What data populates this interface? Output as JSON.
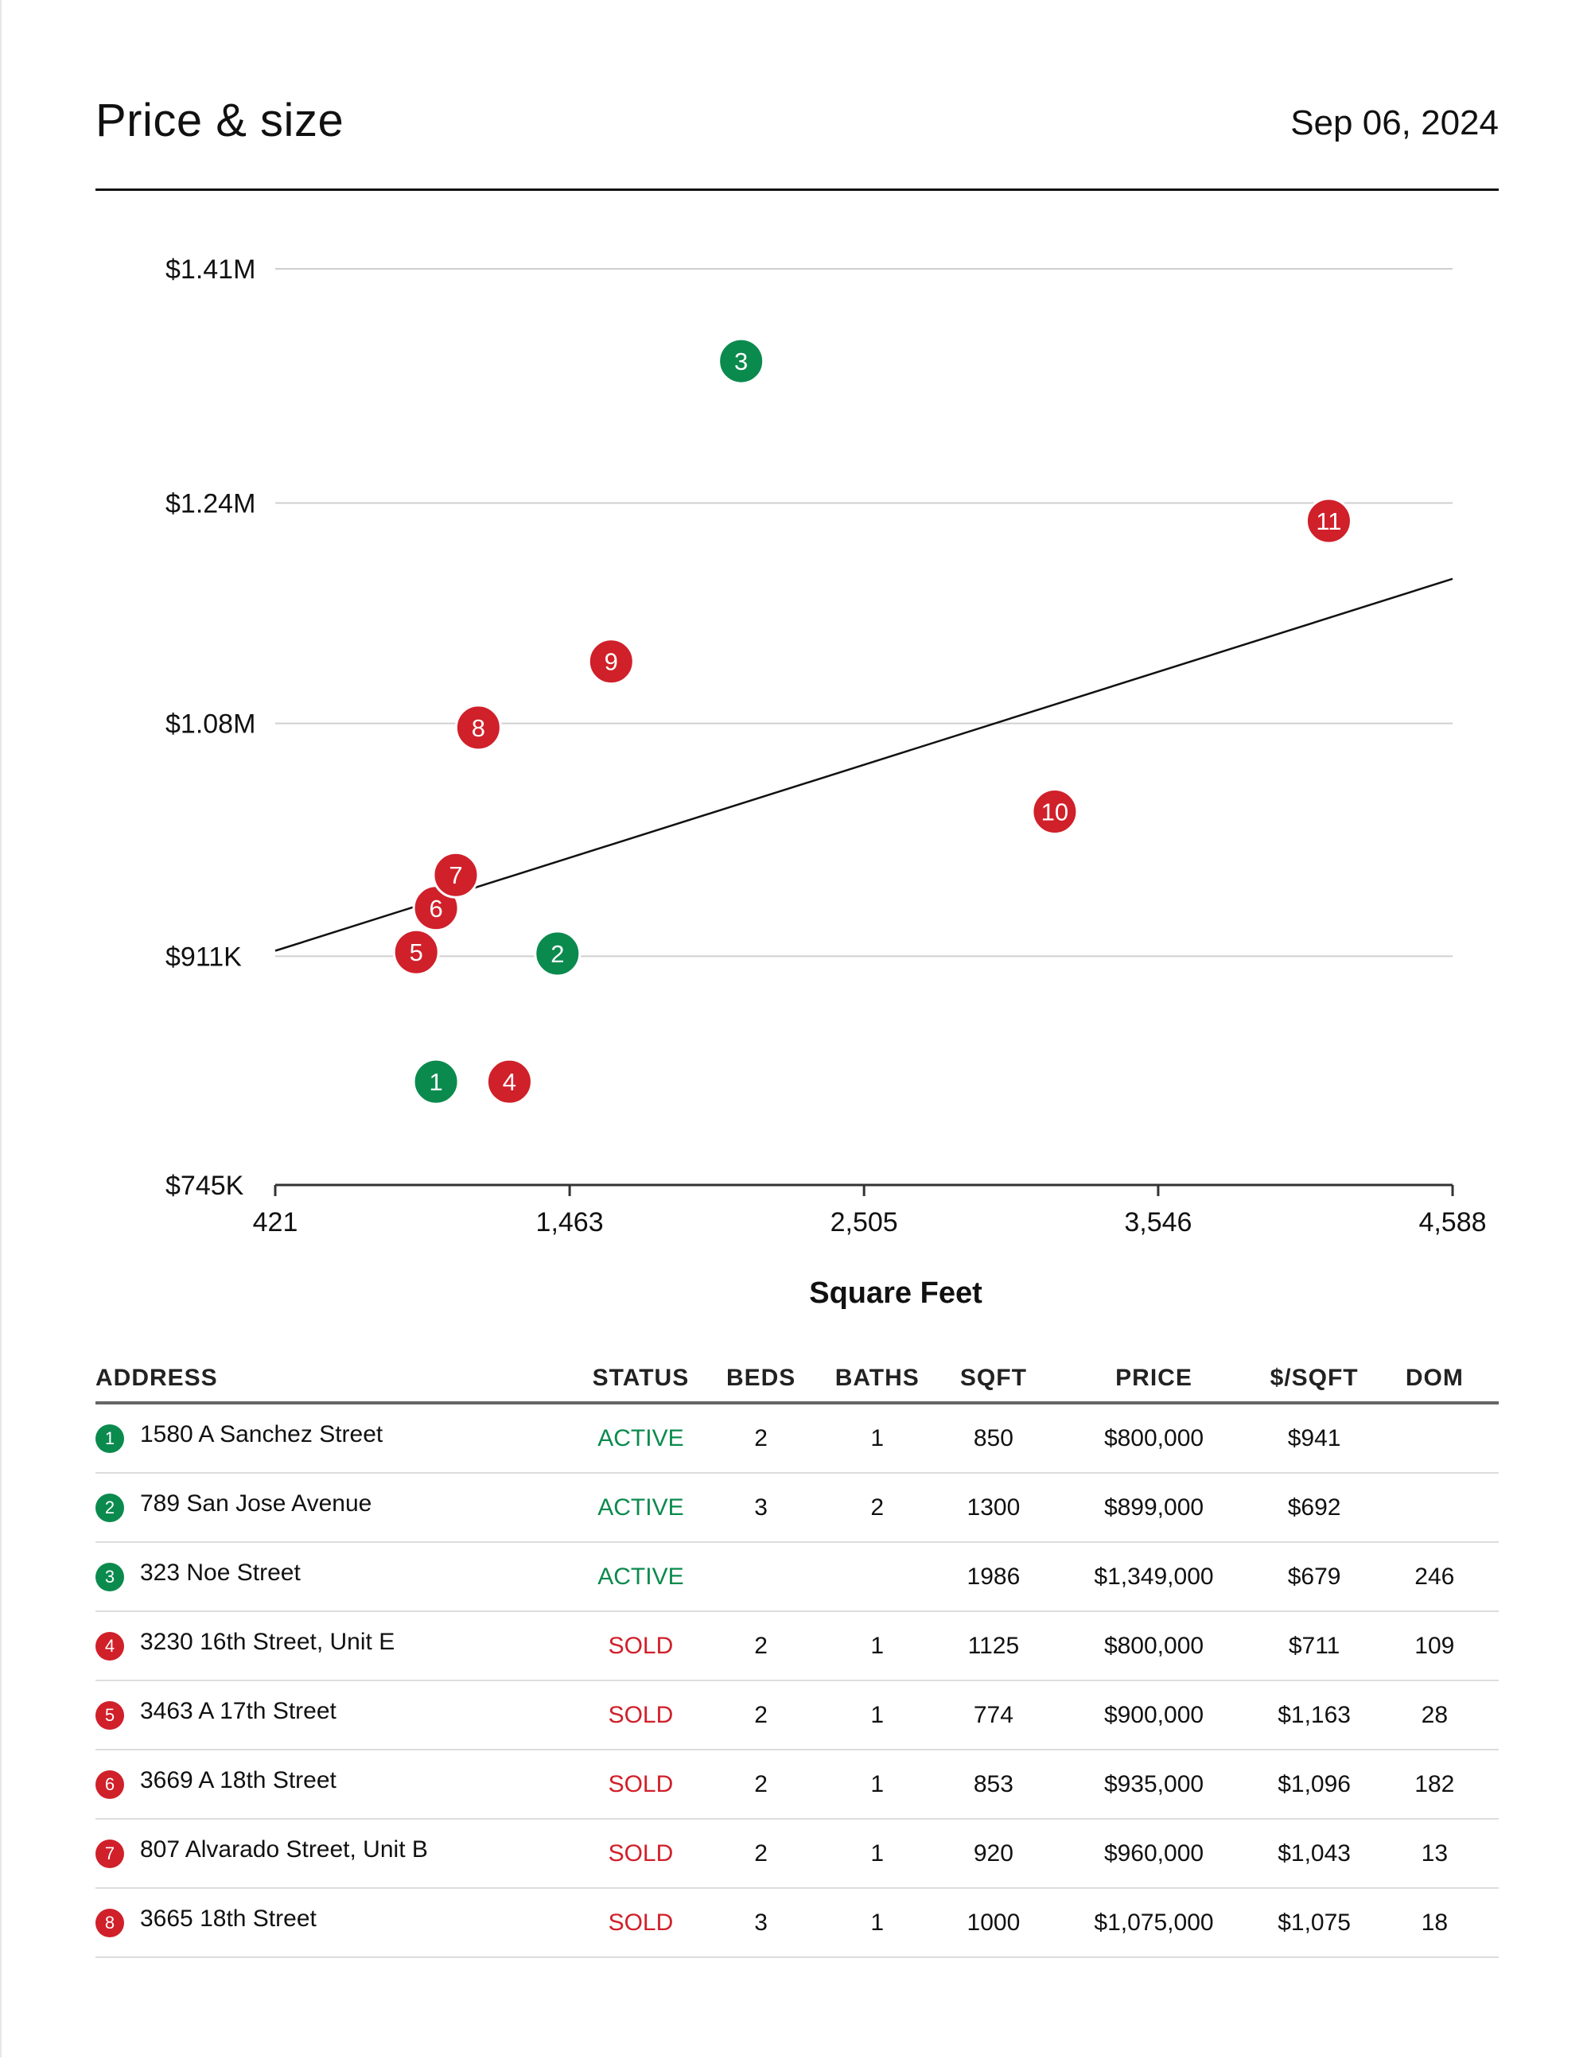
{
  "header": {
    "title": "Price & size",
    "date": "Sep 06, 2024"
  },
  "colors": {
    "active": "#0b8a4e",
    "sold": "#d0202a",
    "trendline": "#111111",
    "gridline": "#cfcfcf"
  },
  "chart_data": {
    "type": "scatter",
    "xlabel": "Square Feet",
    "x_ticks": [
      421,
      1463,
      2505,
      3546,
      4588
    ],
    "x_tick_labels": [
      "421",
      "1,463",
      "2,505",
      "3,546",
      "4,588"
    ],
    "y_ticks": [
      745000,
      911000,
      1080000,
      1240000,
      1410000
    ],
    "y_tick_labels": [
      "$745K",
      "$911K",
      "$1.08M",
      "$1.24M",
      "$1.41M"
    ],
    "xlim": [
      421,
      4588
    ],
    "ylim": [
      745000,
      1410000
    ],
    "grid": true,
    "points": [
      {
        "label": "1",
        "x": 990,
        "y": 820000,
        "status": "active"
      },
      {
        "label": "2",
        "x": 1420,
        "y": 913000,
        "status": "active"
      },
      {
        "label": "3",
        "x": 2070,
        "y": 1343000,
        "status": "active"
      },
      {
        "label": "4",
        "x": 1250,
        "y": 820000,
        "status": "sold"
      },
      {
        "label": "5",
        "x": 920,
        "y": 914000,
        "status": "sold"
      },
      {
        "label": "6",
        "x": 990,
        "y": 946000,
        "status": "sold"
      },
      {
        "label": "7",
        "x": 1060,
        "y": 970000,
        "status": "sold"
      },
      {
        "label": "8",
        "x": 1140,
        "y": 1077000,
        "status": "sold"
      },
      {
        "label": "9",
        "x": 1610,
        "y": 1125000,
        "status": "sold"
      },
      {
        "label": "10",
        "x": 3180,
        "y": 1016000,
        "status": "sold"
      },
      {
        "label": "11",
        "x": 4150,
        "y": 1227000,
        "status": "sold"
      }
    ],
    "trendline": {
      "x0": 421,
      "y0": 915000,
      "x1": 4588,
      "y1": 1185000
    }
  },
  "table": {
    "headers": [
      "ADDRESS",
      "STATUS",
      "BEDS",
      "BATHS",
      "SQFT",
      "PRICE",
      "$/SQFT",
      "DOM"
    ],
    "rows": [
      {
        "num": "1",
        "address": "1580 A Sanchez Street",
        "status": "ACTIVE",
        "beds": "2",
        "baths": "1",
        "sqft": "850",
        "price": "$800,000",
        "ppsf": "$941",
        "dom": ""
      },
      {
        "num": "2",
        "address": "789 San Jose Avenue",
        "status": "ACTIVE",
        "beds": "3",
        "baths": "2",
        "sqft": "1300",
        "price": "$899,000",
        "ppsf": "$692",
        "dom": ""
      },
      {
        "num": "3",
        "address": "323 Noe Street",
        "status": "ACTIVE",
        "beds": "",
        "baths": "",
        "sqft": "1986",
        "price": "$1,349,000",
        "ppsf": "$679",
        "dom": "246"
      },
      {
        "num": "4",
        "address": "3230 16th Street, Unit E",
        "status": "SOLD",
        "beds": "2",
        "baths": "1",
        "sqft": "1125",
        "price": "$800,000",
        "ppsf": "$711",
        "dom": "109"
      },
      {
        "num": "5",
        "address": "3463 A 17th Street",
        "status": "SOLD",
        "beds": "2",
        "baths": "1",
        "sqft": "774",
        "price": "$900,000",
        "ppsf": "$1,163",
        "dom": "28"
      },
      {
        "num": "6",
        "address": "3669 A 18th Street",
        "status": "SOLD",
        "beds": "2",
        "baths": "1",
        "sqft": "853",
        "price": "$935,000",
        "ppsf": "$1,096",
        "dom": "182"
      },
      {
        "num": "7",
        "address": "807 Alvarado Street, Unit B",
        "status": "SOLD",
        "beds": "2",
        "baths": "1",
        "sqft": "920",
        "price": "$960,000",
        "ppsf": "$1,043",
        "dom": "13"
      },
      {
        "num": "8",
        "address": "3665 18th Street",
        "status": "SOLD",
        "beds": "3",
        "baths": "1",
        "sqft": "1000",
        "price": "$1,075,000",
        "ppsf": "$1,075",
        "dom": "18"
      }
    ]
  }
}
